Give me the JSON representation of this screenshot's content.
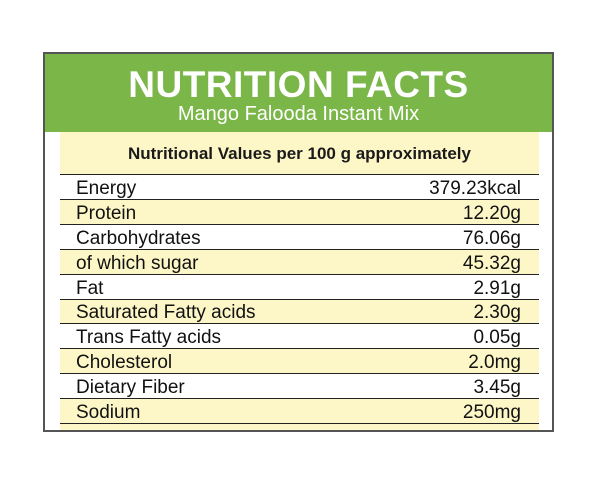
{
  "label": {
    "title": "NUTRITION FACTS",
    "subtitle": "Mango Falooda Instant Mix",
    "caption": "Nutritional Values per 100 g approximately"
  },
  "rows": [
    {
      "name": "Energy",
      "value": "379.23kcal"
    },
    {
      "name": "Protein",
      "value": "12.20g"
    },
    {
      "name": "Carbohydrates",
      "value": "76.06g"
    },
    {
      "name": "of which sugar",
      "value": "45.32g"
    },
    {
      "name": "Fat",
      "value": "2.91g"
    },
    {
      "name": "Saturated Fatty acids",
      "value": "2.30g"
    },
    {
      "name": "Trans Fatty acids",
      "value": "0.05g"
    },
    {
      "name": "Cholesterol",
      "value": "2.0mg"
    },
    {
      "name": "Dietary Fiber",
      "value": "3.45g"
    },
    {
      "name": "Sodium",
      "value": "250mg"
    }
  ],
  "colors": {
    "header_green": "#7ab648",
    "cream": "#fdf7c8",
    "border": "#555555"
  }
}
